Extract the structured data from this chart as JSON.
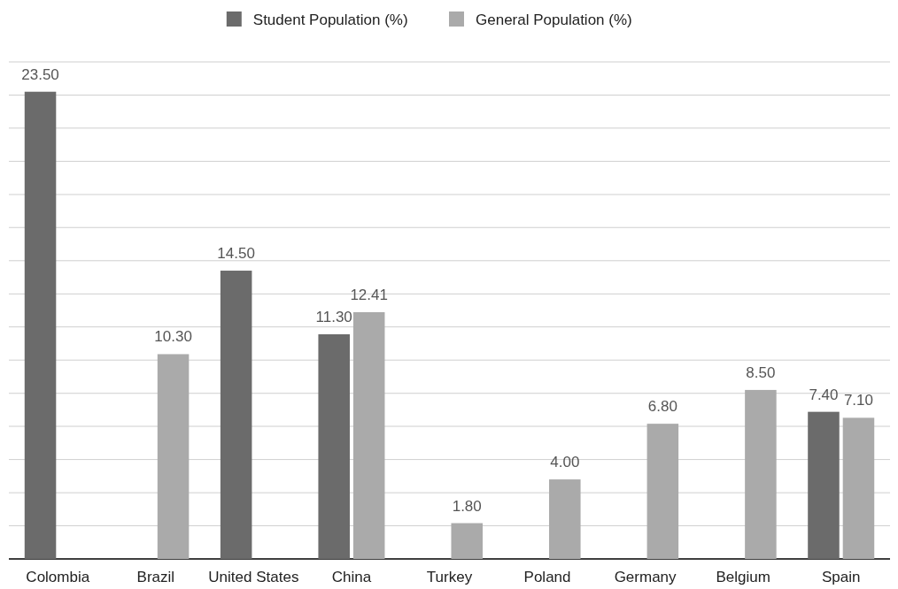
{
  "chart_data": {
    "type": "bar",
    "categories": [
      "Colombia",
      "Brazil",
      "United States",
      "China",
      "Turkey",
      "Poland",
      "Germany",
      "Belgium",
      "Spain"
    ],
    "series": [
      {
        "name": "Student Population (%)",
        "color": "#6b6b6b",
        "values": [
          23.5,
          null,
          14.5,
          11.3,
          null,
          null,
          null,
          null,
          7.4
        ],
        "value_labels": [
          "23.50",
          null,
          "14.50",
          "11.30",
          null,
          null,
          null,
          null,
          "7.40"
        ]
      },
      {
        "name": "General Population (%)",
        "color": "#aaaaaa",
        "values": [
          null,
          10.3,
          null,
          12.41,
          1.8,
          4.0,
          6.8,
          8.5,
          7.1
        ],
        "value_labels": [
          null,
          "10.30",
          null,
          "12.41",
          "1.80",
          "4.00",
          "6.80",
          "8.50",
          "7.10"
        ]
      }
    ],
    "ylim": [
      0,
      25
    ],
    "yticks": [
      {
        "value": 0,
        "label": null
      },
      {
        "value": 1.67,
        "label": null
      },
      {
        "value": 3.33,
        "label": null
      },
      {
        "value": 5,
        "label": null
      },
      {
        "value": 6.67,
        "label": null
      },
      {
        "value": 8.33,
        "label": null
      },
      {
        "value": 10,
        "label": null
      },
      {
        "value": 11.67,
        "label": null
      },
      {
        "value": 13.33,
        "label": null
      },
      {
        "value": 15,
        "label": null
      },
      {
        "value": 16.67,
        "label": null
      },
      {
        "value": 18.33,
        "label": null
      },
      {
        "value": 20,
        "label": null
      },
      {
        "value": 21.67,
        "label": null
      },
      {
        "value": 23.33,
        "label": null
      },
      {
        "value": 25,
        "label": null
      }
    ],
    "tick_labels": "x",
    "grid": "y",
    "legend": "top"
  }
}
